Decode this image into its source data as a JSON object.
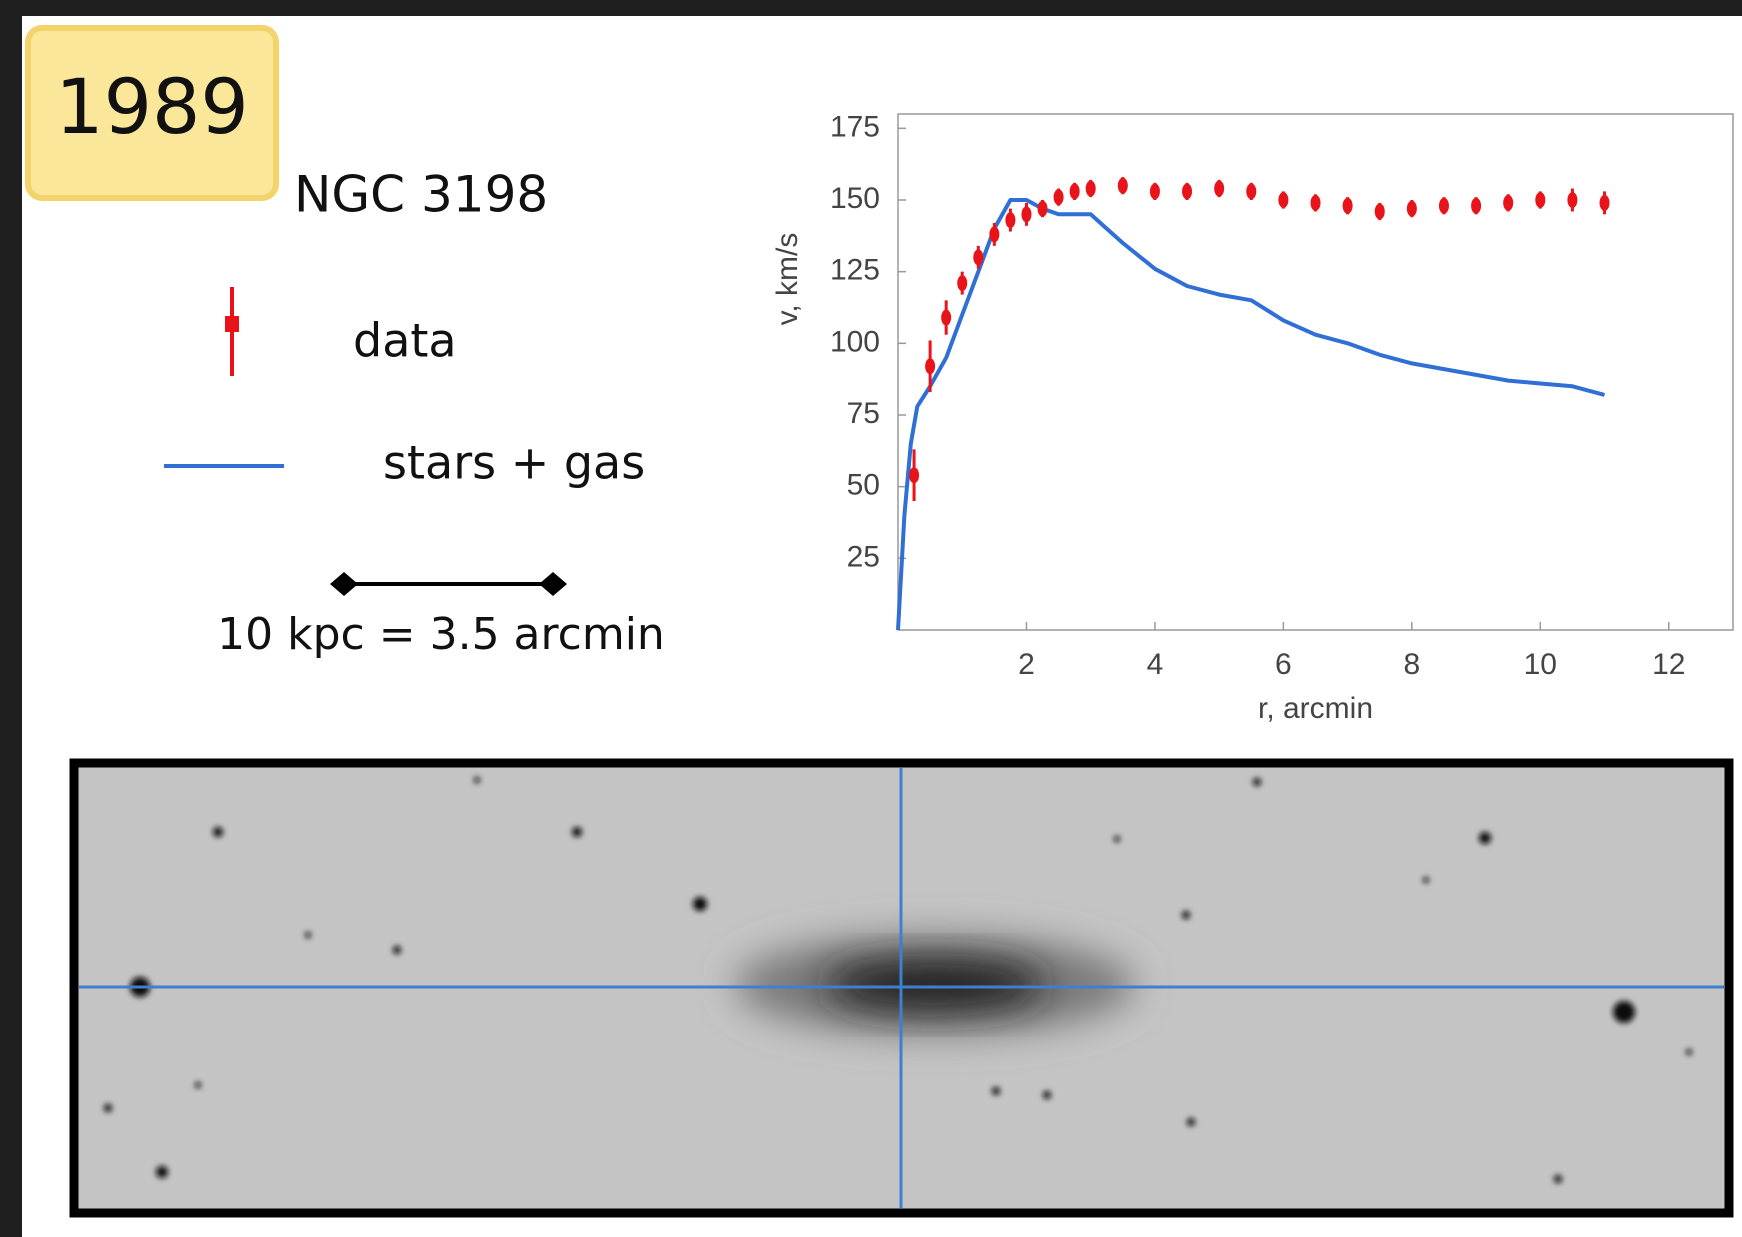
{
  "badge": "1989",
  "galaxy": "NGC 3198",
  "scale_bar": "10 kpc = 3.5 arcmin",
  "chart_data": {
    "type": "errorbar-line",
    "x_label": "r, arcmin",
    "y_label": "v, km/s",
    "xlim": [
      0,
      13
    ],
    "xticks": [
      2,
      4,
      6,
      8,
      10,
      12
    ],
    "ylim": [
      0,
      180
    ],
    "yticks": [
      25,
      50,
      75,
      100,
      125,
      150,
      175
    ],
    "series": [
      {
        "name": "data",
        "color": "#e8141a",
        "x": [
          0.25,
          0.5,
          0.75,
          1.0,
          1.25,
          1.5,
          1.75,
          2.0,
          2.25,
          2.5,
          2.75,
          3.0,
          3.5,
          4.0,
          4.5,
          5.0,
          5.5,
          6.0,
          6.5,
          7.0,
          7.5,
          8.0,
          8.5,
          9.0,
          9.5,
          10.0,
          10.5,
          11.0
        ],
        "values": [
          54,
          92,
          109,
          121,
          130,
          138,
          143,
          145,
          147,
          151,
          153,
          154,
          155,
          153,
          153,
          154,
          153,
          150,
          149,
          148,
          146,
          147,
          148,
          148,
          149,
          150,
          150,
          149
        ],
        "errors": [
          9,
          9,
          6,
          4,
          4,
          4,
          4,
          4,
          3,
          3,
          3,
          3,
          3,
          3,
          3,
          3,
          3,
          3,
          3,
          3,
          3,
          3,
          3,
          3,
          3,
          3,
          4,
          4
        ]
      },
      {
        "name": "stars + gas",
        "color": "#2f6fd6",
        "x": [
          0,
          0.1,
          0.2,
          0.3,
          0.5,
          0.75,
          1.0,
          1.25,
          1.5,
          1.75,
          2.0,
          2.25,
          2.5,
          3.0,
          3.25,
          3.5,
          4.0,
          4.5,
          5.0,
          5.5,
          6.0,
          6.5,
          7.0,
          7.5,
          8.0,
          8.5,
          9.0,
          9.5,
          10.0,
          10.5,
          11.0
        ],
        "values": [
          0,
          40,
          65,
          78,
          85,
          95,
          110,
          125,
          140,
          150,
          150,
          147,
          145,
          145,
          140,
          135,
          126,
          120,
          117,
          115,
          108,
          103,
          100,
          96,
          93,
          91,
          89,
          87,
          86,
          85,
          82
        ]
      }
    ]
  }
}
